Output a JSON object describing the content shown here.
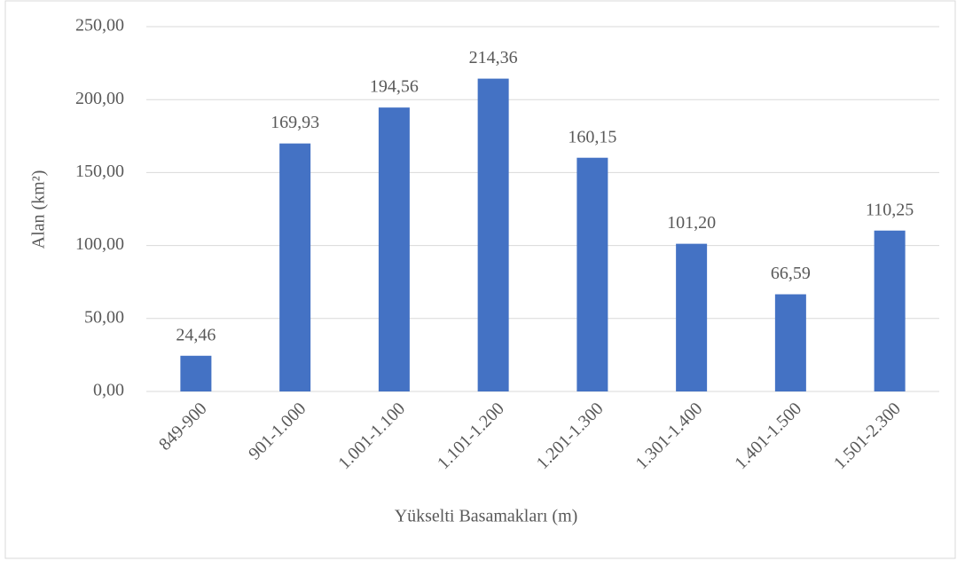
{
  "chart_data": {
    "type": "bar",
    "x_label": "Yükselti Basamakları (m)",
    "y_label": "Alan (km²)",
    "categories": [
      "849-900",
      "901-1.000",
      "1.001-1.100",
      "1.101-1.200",
      "1.201-1.300",
      "1.301-1.400",
      "1.401-1.500",
      "1.501-2.300"
    ],
    "values": [
      24.46,
      169.93,
      194.56,
      214.36,
      160.15,
      101.2,
      66.59,
      110.25
    ],
    "value_labels": [
      "24,46",
      "169,93",
      "194,56",
      "214,36",
      "160,15",
      "101,20",
      "66,59",
      "110,25"
    ],
    "color": "#4472c4",
    "ylim": [
      0,
      250
    ],
    "yticks": [
      {
        "value": 0,
        "label": "0,00"
      },
      {
        "value": 50,
        "label": "50,00"
      },
      {
        "value": 100,
        "label": "100,00"
      },
      {
        "value": 150,
        "label": "150,00"
      },
      {
        "value": 200,
        "label": "200,00"
      },
      {
        "value": 250,
        "label": "250,00"
      }
    ],
    "grid": true
  }
}
